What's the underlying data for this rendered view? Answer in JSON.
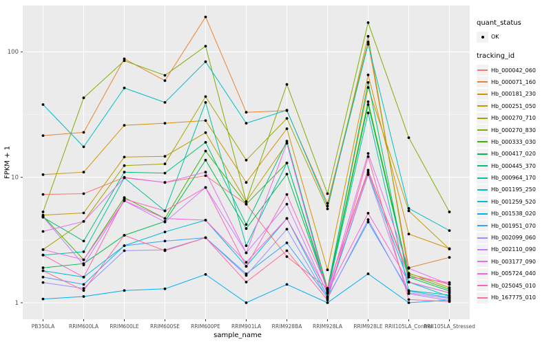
{
  "chart_data": {
    "type": "line",
    "title": "",
    "xlabel": "sample_name",
    "ylabel": "FPKM + 1",
    "y_scale": "log10",
    "y_ticks": [
      1,
      10,
      100
    ],
    "y_minor_breaks": [
      3.162,
      31.62
    ],
    "ylim": [
      0.72,
      230
    ],
    "grid": "white-on-gray-panel",
    "legend_position": "right",
    "point_marker": "black-dot",
    "categories": [
      "PB350LA",
      "RRIM600LA",
      "RRIM600LE",
      "RRIM600SE",
      "RRIM600PE",
      "RRIM901LA",
      "RRIM928BA",
      "RRIM928LA",
      "RRIM928LE",
      "RRII105LA_Control",
      "RRII105LA_Stressed"
    ],
    "series": [
      {
        "name": "Hb_000042_060",
        "color": "#F8766D",
        "values": [
          7.3,
          7.4,
          10.0,
          9.1,
          10.3,
          6.1,
          2.33,
          1.3,
          11.0,
          1.7,
          1.4
        ]
      },
      {
        "name": "Hb_000071_160",
        "color": "#EA8331",
        "values": [
          21.5,
          22.8,
          88,
          59,
          190,
          33,
          34,
          6.2,
          120,
          1.9,
          2.3
        ]
      },
      {
        "name": "Hb_000181_230",
        "color": "#D89000",
        "values": [
          10.5,
          11,
          26,
          27,
          28.3,
          9.1,
          24.4,
          1.83,
          65.5,
          3.53,
          2.7
        ]
      },
      {
        "name": "Hb_000251_050",
        "color": "#C09B00",
        "values": [
          5.0,
          5.2,
          14.5,
          14.7,
          22.7,
          6.4,
          18.7,
          1.3,
          52,
          5.4,
          2.68
        ]
      },
      {
        "name": "Hb_000270_710",
        "color": "#A3A500",
        "values": [
          2.65,
          4.45,
          12.4,
          12.8,
          44,
          13.7,
          29.5,
          5.6,
          133,
          1.72,
          1.32
        ]
      },
      {
        "name": "Hb_000270_830",
        "color": "#7CAE00",
        "values": [
          5.3,
          43,
          85,
          65,
          111,
          6.4,
          55,
          7.4,
          171,
          20.7,
          5.3
        ]
      },
      {
        "name": "Hb_000333_030",
        "color": "#39B600",
        "values": [
          4.9,
          2.2,
          6.9,
          4.7,
          16.2,
          6.1,
          13,
          1.28,
          40,
          1.66,
          1.28
        ]
      },
      {
        "name": "Hb_000417_020",
        "color": "#00BB4E",
        "values": [
          1.9,
          2.05,
          3.45,
          4.45,
          13.7,
          3.9,
          10.6,
          1.25,
          38,
          1.6,
          1.24
        ]
      },
      {
        "name": "Hb_000445_370",
        "color": "#00BF7D",
        "values": [
          4.8,
          3.1,
          11,
          10.8,
          19,
          4.2,
          19.4,
          1.27,
          57,
          1.46,
          1.2
        ]
      },
      {
        "name": "Hb_000964_170",
        "color": "#00C1A3",
        "values": [
          2.4,
          2.55,
          9.9,
          5.4,
          39.5,
          2.85,
          13,
          1.22,
          32.6,
          1.25,
          1.15
        ]
      },
      {
        "name": "Hb_001195_250",
        "color": "#00BFC4",
        "values": [
          38,
          17.5,
          51.5,
          39.5,
          83.5,
          27,
          34.3,
          5.9,
          115,
          5.65,
          3.76
        ]
      },
      {
        "name": "Hb_001259_520",
        "color": "#00BAE0",
        "values": [
          1.8,
          1.6,
          2.85,
          3.67,
          4.55,
          1.95,
          4.7,
          1.12,
          10.6,
          1.46,
          1.12
        ]
      },
      {
        "name": "Hb_001538_020",
        "color": "#00B0F6",
        "values": [
          1.07,
          1.12,
          1.25,
          1.29,
          1.68,
          1.0,
          1.4,
          1.0,
          1.7,
          1.0,
          1.05
        ]
      },
      {
        "name": "Hb_001951_070",
        "color": "#35A2FF",
        "values": [
          1.6,
          1.4,
          2.85,
          3.1,
          3.3,
          1.7,
          3.0,
          1.1,
          4.4,
          1.24,
          1.1
        ]
      },
      {
        "name": "Hb_002099_060",
        "color": "#9590FF",
        "values": [
          1.45,
          1.3,
          2.6,
          2.64,
          3.3,
          1.65,
          3.86,
          1.08,
          4.6,
          1.2,
          1.08
        ]
      },
      {
        "name": "Hb_002110_090",
        "color": "#C77CFF",
        "values": [
          4.85,
          2.0,
          6.5,
          4.4,
          8.3,
          2.5,
          6.1,
          1.18,
          10.5,
          1.18,
          1.04
        ]
      },
      {
        "name": "Hb_003177_090",
        "color": "#E76BF3",
        "values": [
          3.7,
          4.45,
          9.9,
          9.1,
          11,
          2.5,
          18.7,
          1.2,
          15.5,
          1.88,
          1.4
        ]
      },
      {
        "name": "Hb_005724_040",
        "color": "#FA62DB",
        "values": [
          2.65,
          2.2,
          6.5,
          4.7,
          4.55,
          2.1,
          4.7,
          1.22,
          5.17,
          1.46,
          1.2
        ]
      },
      {
        "name": "Hb_025045_010",
        "color": "#FF62BC",
        "values": [
          2.4,
          1.6,
          6.7,
          5.4,
          8.3,
          1.95,
          7.3,
          1.3,
          11.4,
          1.6,
          1.45
        ]
      },
      {
        "name": "Hb_167775_010",
        "color": "#FF6A98",
        "values": [
          1.8,
          1.25,
          3.45,
          2.6,
          3.3,
          1.46,
          2.6,
          1.05,
          14.6,
          1.06,
          1.02
        ]
      }
    ]
  },
  "legend": {
    "quant_status_title": "quant_status",
    "ok_label": "OK",
    "ok_symbol": "black-point",
    "tracking_title": "tracking_id"
  },
  "colors": {
    "panel_bg": "#EBEBEB",
    "grid_major": "#FFFFFF",
    "grid_minor": "#F5F5F5",
    "axis_text": "#4D4D4D",
    "tick_mark": "#333333",
    "point": "#000000",
    "legend_key_bg": "#F2F2F2"
  }
}
